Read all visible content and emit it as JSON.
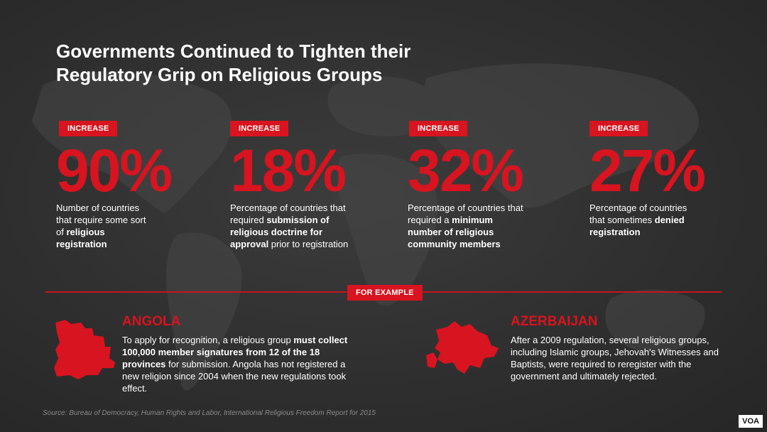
{
  "title_line1": "Governments Continued to Tighten their",
  "title_line2": "Regulatory Grip on Religious Groups",
  "stats": [
    {
      "badge": "INCREASE",
      "value": "90%",
      "desc_pre": "Number of countries that require some sort of ",
      "desc_bold": "religious registration",
      "desc_post": ""
    },
    {
      "badge": "INCREASE",
      "value": "18%",
      "desc_pre": "Percentage of countries that required ",
      "desc_bold": "submission of religious doctrine for approval",
      "desc_post": " prior to registration"
    },
    {
      "badge": "INCREASE",
      "value": "32%",
      "desc_pre": "Percentage of countries that required a ",
      "desc_bold": "minimum number of religious community members",
      "desc_post": ""
    },
    {
      "badge": "INCREASE",
      "value": "27%",
      "desc_pre": "Percentage of countries that sometimes ",
      "desc_bold": "denied registration",
      "desc_post": ""
    }
  ],
  "for_example_label": "FOR EXAMPLE",
  "examples": [
    {
      "name": "ANGOLA",
      "text_pre": "To apply for recognition, a religious group ",
      "text_bold": "must collect 100,000 member signatures from 12 of the 18 provinces",
      "text_post": " for submission. Angola has not registered a new religion since 2004 when the new regulations took effect."
    },
    {
      "name": "AZERBAIJAN",
      "text_pre": "After a 2009 regulation, several religious groups, including Islamic groups, Jehovah's Witnesses and Baptists, were required to reregister with the government and ultimately rejected.",
      "text_bold": "",
      "text_post": ""
    }
  ],
  "source": "Source: Bureau of Democracy, Human Rights and Labor, International Religious Freedom Report for 2015",
  "logo": "VOA",
  "colors": {
    "accent": "#d7141f",
    "background": "#2f2f2f",
    "text": "#ffffff"
  }
}
